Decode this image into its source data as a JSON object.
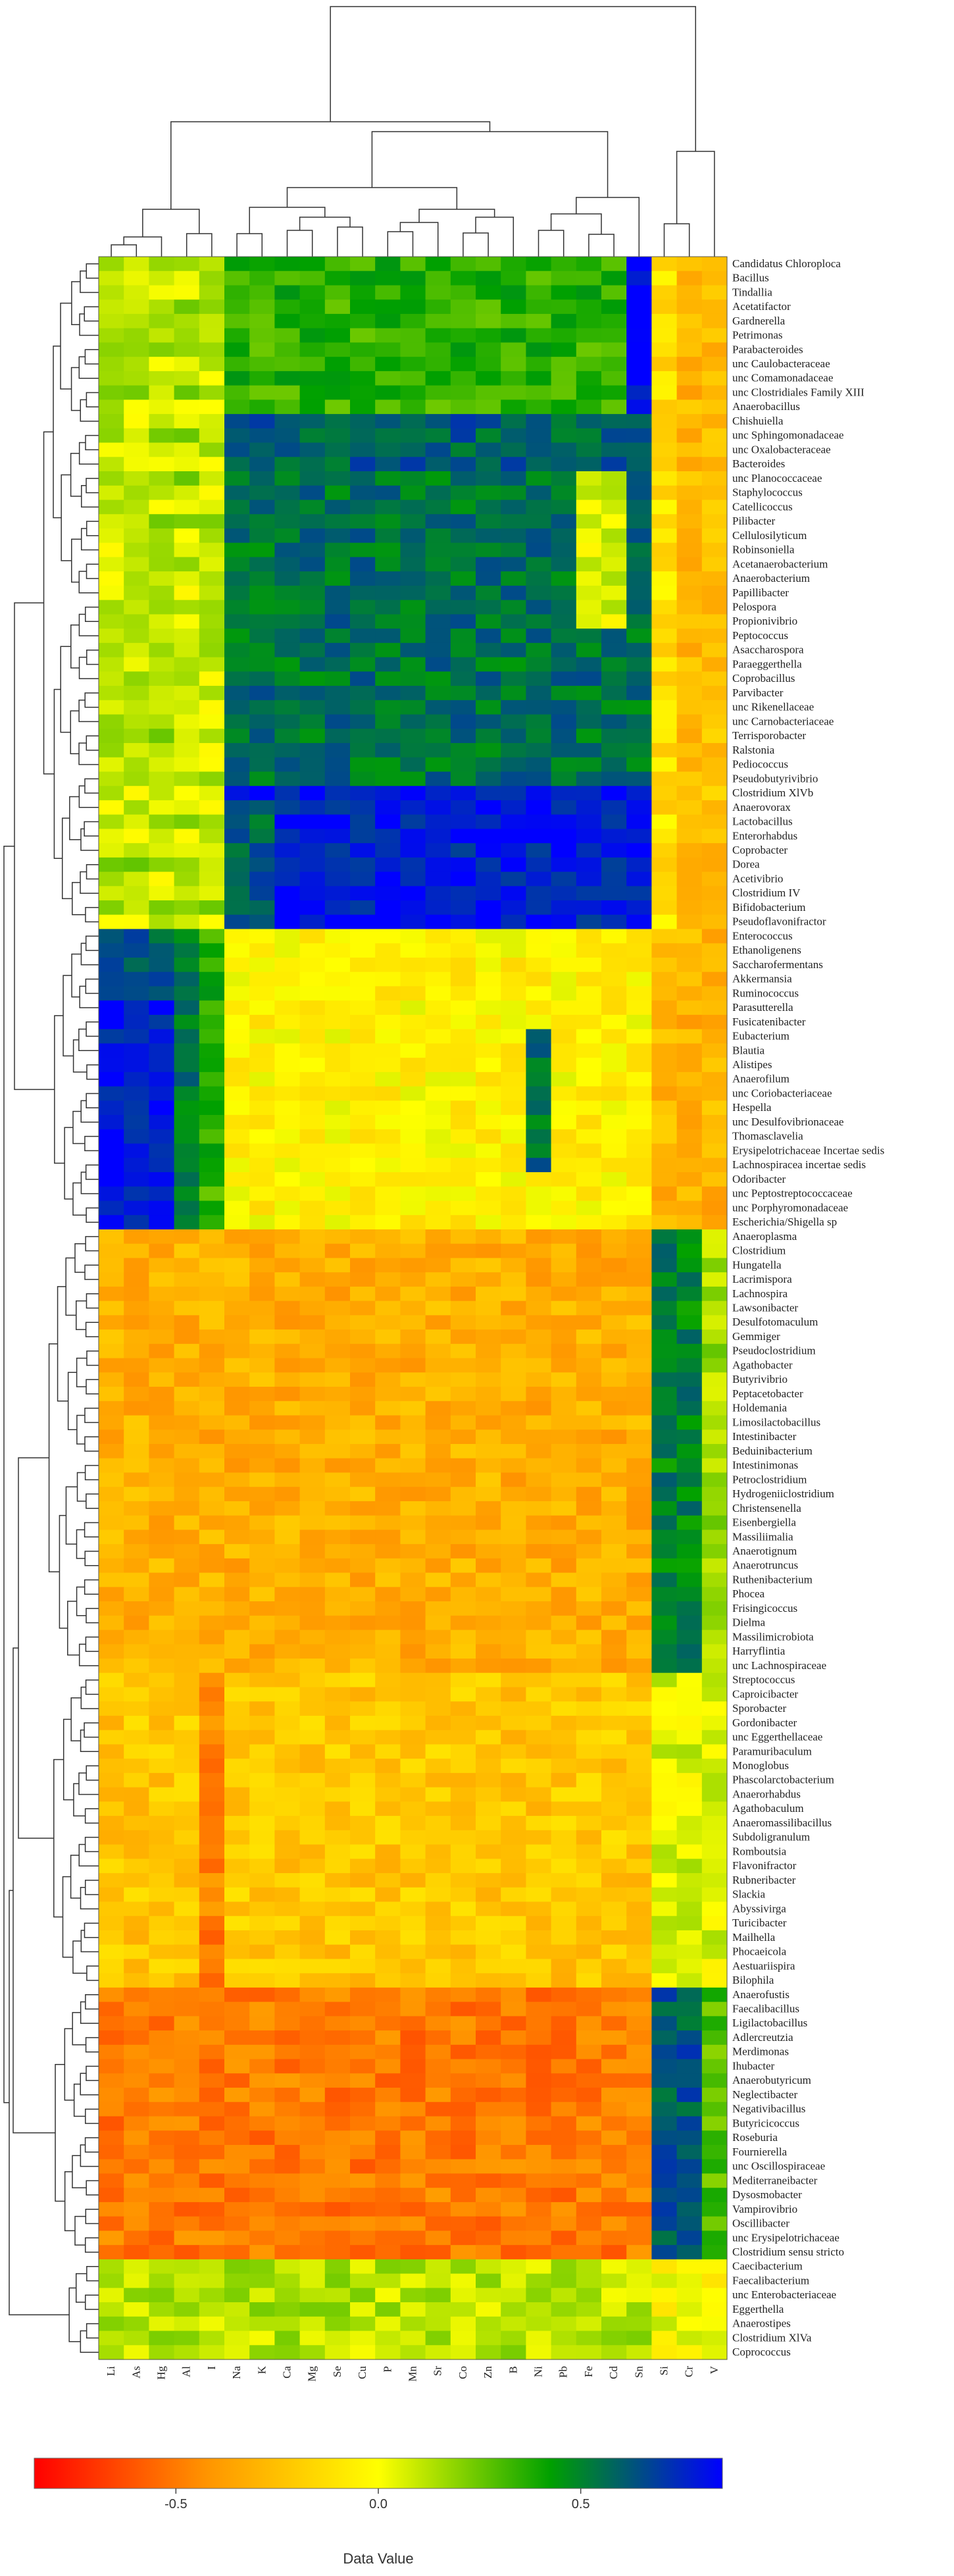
{
  "chart_data": {
    "type": "heatmap",
    "title": "",
    "columns": [
      "Li",
      "As",
      "Hg",
      "Al",
      "I",
      "Na",
      "K",
      "Ca",
      "Mg",
      "Se",
      "Cu",
      "P",
      "Mn",
      "Sr",
      "Co",
      "Zn",
      "B",
      "Ni",
      "Pb",
      "Fe",
      "Cd",
      "Sn",
      "Si",
      "Cr",
      "V"
    ],
    "rows": [
      "Candidatus Chloroploca",
      "Bacillus",
      "Tindallia",
      "Acetatifactor",
      "Gardnerella",
      "Petrimonas",
      "Parabacteroides",
      "unc Caulobacteraceae",
      "unc Comamonadaceae",
      "unc Clostridiales Family XIII",
      "Anaerobacillus",
      "Chishuiella",
      "unc Sphingomonadaceae",
      "unc Oxalobacteraceae",
      "Bacteroides",
      "unc Planococcaceae",
      "Staphylococcus",
      "Catellicoccus",
      "Pilibacter",
      "Cellulosilyticum",
      "Robinsoniella",
      "Acetanaerobacterium",
      "Anaerobacterium",
      "Papillibacter",
      "Pelospora",
      "Propionivibrio",
      "Peptococcus",
      "Asaccharospora",
      "Paraeggerthella",
      "Coprobacillus",
      "Parvibacter",
      "unc Rikenellaceae",
      "unc Carnobacteriaceae",
      "Terrisporobacter",
      "Ralstonia",
      "Pediococcus",
      "Pseudobutyrivibrio",
      "Clostridium XlVb",
      "Anaerovorax",
      "Lactobacillus",
      "Enterorhabdus",
      "Coprobacter",
      "Dorea",
      "Acetivibrio",
      "Clostridium IV",
      "Bifidobacterium",
      "Pseudoflavonifractor",
      "Enterococcus",
      "Ethanoligenens",
      "Saccharofermentans",
      "Akkermansia",
      "Ruminococcus",
      "Parasutterella",
      "Fusicatenibacter",
      "Eubacterium",
      "Blautia",
      "Alistipes",
      "Anaerofilum",
      "unc Coriobacteriaceae",
      "Hespella",
      "unc Desulfovibrionaceae",
      "Thomasclavelia",
      "Erysipelotrichaceae Incertae sedis",
      "Lachnospiracea incertae sedis",
      "Odoribacter",
      "unc Peptostreptococcaceae",
      "unc Porphyromonadaceae",
      "Escherichia/Shigella sp",
      "Anaeroplasma",
      "Clostridium",
      "Hungatella",
      "Lacrimispora",
      "Lachnospira",
      "Lawsonibacter",
      "Desulfotomaculum",
      "Gemmiger",
      "Pseudoclostridium",
      "Agathobacter",
      "Butyrivibrio",
      "Peptacetobacter",
      "Holdemania",
      "Limosilactobacillus",
      "Intestinibacter",
      "Beduinibacterium",
      "Intestinimonas",
      "Petroclostridium",
      "Hydrogeniiclostridium",
      "Christensenella",
      "Eisenbergiella",
      "Massiliimalia",
      "Anaerotignum",
      "Anaerotruncus",
      "Ruthenibacterium",
      "Phocea",
      "Frisingicoccus",
      "Dielma",
      "Massilimicrobiota",
      "Harryflintia",
      "unc Lachnospiraceae",
      "Streptococcus",
      "Caproicibacter",
      "Sporobacter",
      "Gordonibacter",
      "unc Eggerthellaceae",
      "Paramuribaculum",
      "Monoglobus",
      "Phascolarctobacterium",
      "Anaerorhabdus",
      "Agathobaculum",
      "Anaeromassilibacillus",
      "Subdoligranulum",
      "Romboutsia",
      "Flavonifractor",
      "Rubneribacter",
      "Slackia",
      "Abyssivirga",
      "Turicibacter",
      "Mailhella",
      "Phocaeicola",
      "Aestuariispira",
      "Bilophila",
      "Anaerofustis",
      "Faecalibacillus",
      "Ligilactobacillus",
      "Adlercreutzia",
      "Merdimonas",
      "Ihubacter",
      "Anaerobutyricum",
      "Neglectibacter",
      "Negativibacillus",
      "Butyricicoccus",
      "Roseburia",
      "Fournierella",
      "unc Oscillospiraceae",
      "Mediterraneibacter",
      "Dysosmobacter",
      "Vampirovibrio",
      "Oscillibacter",
      "unc Erysipelotrichaceae",
      "Clostridium sensu stricto",
      "Caecibacterium",
      "Faecalibacterium",
      "unc Enterobacteriaceae",
      "Eggerthella",
      "Anaerostipes",
      "Clostridium XlVa",
      "Coprococcus"
    ],
    "color_scale": {
      "label": "Data Value",
      "ticks": [
        "-0.5",
        "0.0",
        "0.5"
      ],
      "tick_values": [
        -0.5,
        0.0,
        0.5
      ],
      "range": [
        -0.85,
        0.85
      ],
      "colors": [
        "#ff0000",
        "#ff9400",
        "#ffff00",
        "#00a000",
        "#0000ff"
      ]
    },
    "row_dendrogram": true,
    "column_dendrogram": true
  }
}
